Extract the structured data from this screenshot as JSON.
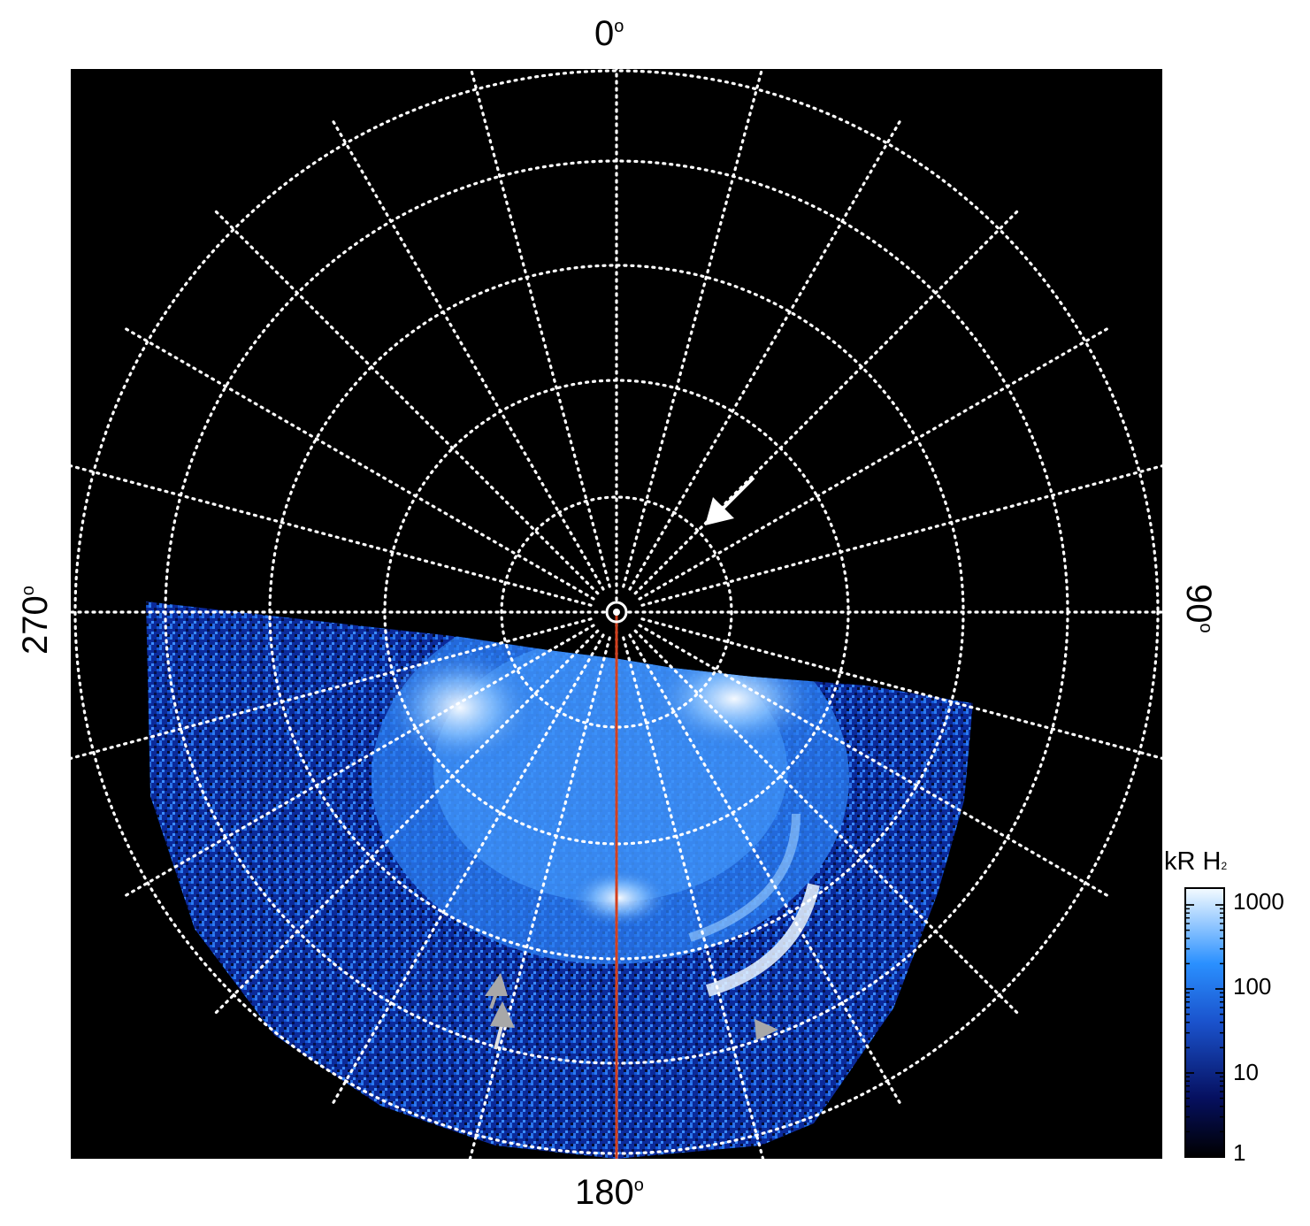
{
  "figure": {
    "labels": {
      "top": "0",
      "right": "90",
      "bottom": "180",
      "left": "270",
      "degree": "o"
    },
    "colorbar": {
      "title": "kR H",
      "title_subscript": "2",
      "ticks": [
        "1000",
        "100",
        "10",
        "1"
      ]
    },
    "colors": {
      "background": "#000000",
      "grid": "#ffffff",
      "meridian_line": "#d2401e",
      "aurora_dim": "#0a1a6e",
      "aurora_mid": "#1f6fe0",
      "aurora_bright": "#eaf4ff",
      "arrow_white": "#ffffff",
      "arrow_gray": "#9a9a9a"
    }
  }
}
